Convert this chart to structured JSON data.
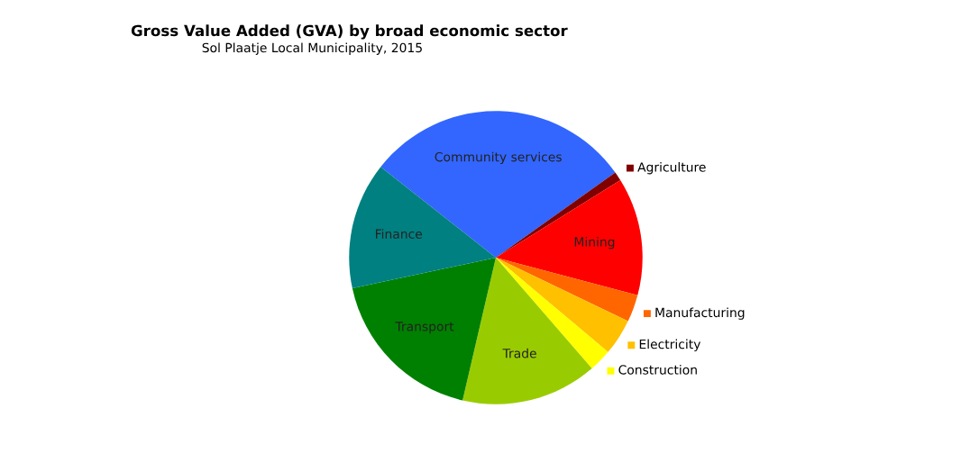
{
  "chart_data": {
    "type": "pie",
    "title": "Gross Value Added (GVA) by broad economic sector",
    "subtitle": "Sol Plaatje Local Municipality, 2015",
    "categories": [
      "Community services",
      "Agriculture",
      "Mining",
      "Manufacturing",
      "Electricity",
      "Construction",
      "Trade",
      "Transport",
      "Finance"
    ],
    "values": [
      29.5,
      1,
      13,
      3,
      4,
      2.5,
      15,
      18,
      14
    ],
    "colors": [
      "#3366ff",
      "#800000",
      "#ff0000",
      "#ff6600",
      "#ffc000",
      "#ffff00",
      "#99cc00",
      "#008000",
      "#008080"
    ],
    "legend": "right"
  }
}
